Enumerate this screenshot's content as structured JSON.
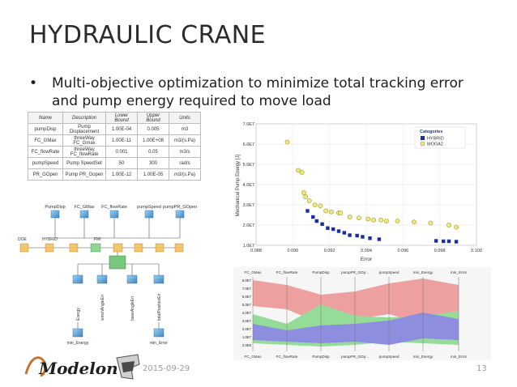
{
  "slide": {
    "title": "HYDRAULIC CRANE",
    "bullet_char": "•",
    "bullet_text": "Multi-objective optimization to minimize total tracking error and pump energy required to move load",
    "date": "2015-09-29",
    "page_number": "13",
    "logo_text": "Modelon"
  },
  "table": {
    "headers": [
      "Name",
      "Description",
      "Lower Bound",
      "Upper Bound",
      "Units"
    ],
    "rows": [
      [
        "pumpDisp",
        "Pump Displacement",
        "1.00E-04",
        "0.005",
        "m3"
      ],
      [
        "FC_GMax",
        "threeWay FC_Gmax",
        "1.00E-11",
        "1.00E+08",
        "m3/(s.Pa)"
      ],
      [
        "FC_flowRate",
        "threeWay FC_flowRate",
        "0.001",
        "0.05",
        "m3/s"
      ],
      [
        "pumpSpeed",
        "Pump SpeedSet",
        "50",
        "300",
        "rad/s"
      ],
      [
        "PR_GOpen",
        "Pump PR_Gopen",
        "1.00E-12",
        "1.00E-05",
        "m3/(s.Pa)"
      ]
    ]
  },
  "flow": {
    "top_labels": [
      "PumpDisp",
      "FC_GMax",
      "FC_flowRate",
      "pumpSpeed",
      "pumpPR_GOpen"
    ],
    "doe_label": "DOE",
    "hybrid_label": "HYBRID",
    "fmi_label": "FMI",
    "output_labels": [
      "Energy",
      "winchAngleErr",
      "baseAngleErr",
      "totalPositionErr"
    ],
    "bottom_labels": [
      "min_Energy",
      "min_Error"
    ]
  },
  "chart_data": {
    "type": "scatter",
    "xlabel": "Error",
    "ylabel": "Mechanical Pump Energy [J]",
    "xlim": [
      0.088,
      0.1
    ],
    "ylim": [
      10000000.0,
      70000000.0
    ],
    "xticks": [
      "0.088",
      "0.090",
      "0.092",
      "0.094",
      "0.096",
      "0.098",
      "0.100"
    ],
    "yticks": [
      "1.0E7",
      "2.0E7",
      "3.0E7",
      "4.0E7",
      "5.0E7",
      "6.0E7",
      "7.0E7"
    ],
    "legend_title": "Categories",
    "legend_position": "top-right",
    "series": [
      {
        "name": "HYBRID",
        "color": "#1a2ea3",
        "marker": "square",
        "x": [
          0.0908,
          0.0911,
          0.0913,
          0.0916,
          0.0919,
          0.0922,
          0.0925,
          0.0928,
          0.0931,
          0.0935,
          0.0938,
          0.0942,
          0.0947,
          0.0978,
          0.0982,
          0.0985,
          0.0989
        ],
        "y": [
          27000000.0,
          24000000.0,
          22000000.0,
          20500000.0,
          18500000.0,
          18000000.0,
          17000000.0,
          16200000.0,
          15000000.0,
          14800000.0,
          14200000.0,
          13500000.0,
          13000000.0,
          12200000.0,
          12000000.0,
          12000000.0,
          11800000.0
        ]
      },
      {
        "name": "MOGA2",
        "color": "#d8d42a",
        "marker": "circle",
        "x": [
          0.0897,
          0.0903,
          0.0905,
          0.0906,
          0.0907,
          0.0909,
          0.0912,
          0.0915,
          0.0918,
          0.0921,
          0.0925,
          0.0926,
          0.0931,
          0.0936,
          0.0941,
          0.0944,
          0.0948,
          0.0951,
          0.0957,
          0.0966,
          0.0975,
          0.0985,
          0.0989
        ],
        "y": [
          61000000.0,
          47000000.0,
          46000000.0,
          36000000.0,
          34000000.0,
          32000000.0,
          30000000.0,
          29500000.0,
          27000000.0,
          26500000.0,
          26000000.0,
          26000000.0,
          24000000.0,
          23500000.0,
          23000000.0,
          22500000.0,
          22500000.0,
          22000000.0,
          22000000.0,
          21500000.0,
          21000000.0,
          20000000.0,
          19000000.0
        ]
      }
    ]
  },
  "parallel": {
    "axes": [
      "FC_GMax",
      "FC_flowRate",
      "PumpDisp",
      "pumpPR_GOp...",
      "pumpSpeed",
      "min_Energy",
      "min_Error"
    ],
    "left_ticks": [
      "8.0E7",
      "7.0E7",
      "6.0E7",
      "5.0E7",
      "4.0E7",
      "3.0E7",
      "2.0E7",
      "1.0E7",
      "2.0E8"
    ],
    "colors": {
      "red": "#e85a5a",
      "green": "#46c84c",
      "blue": "#3a3ad0"
    }
  }
}
